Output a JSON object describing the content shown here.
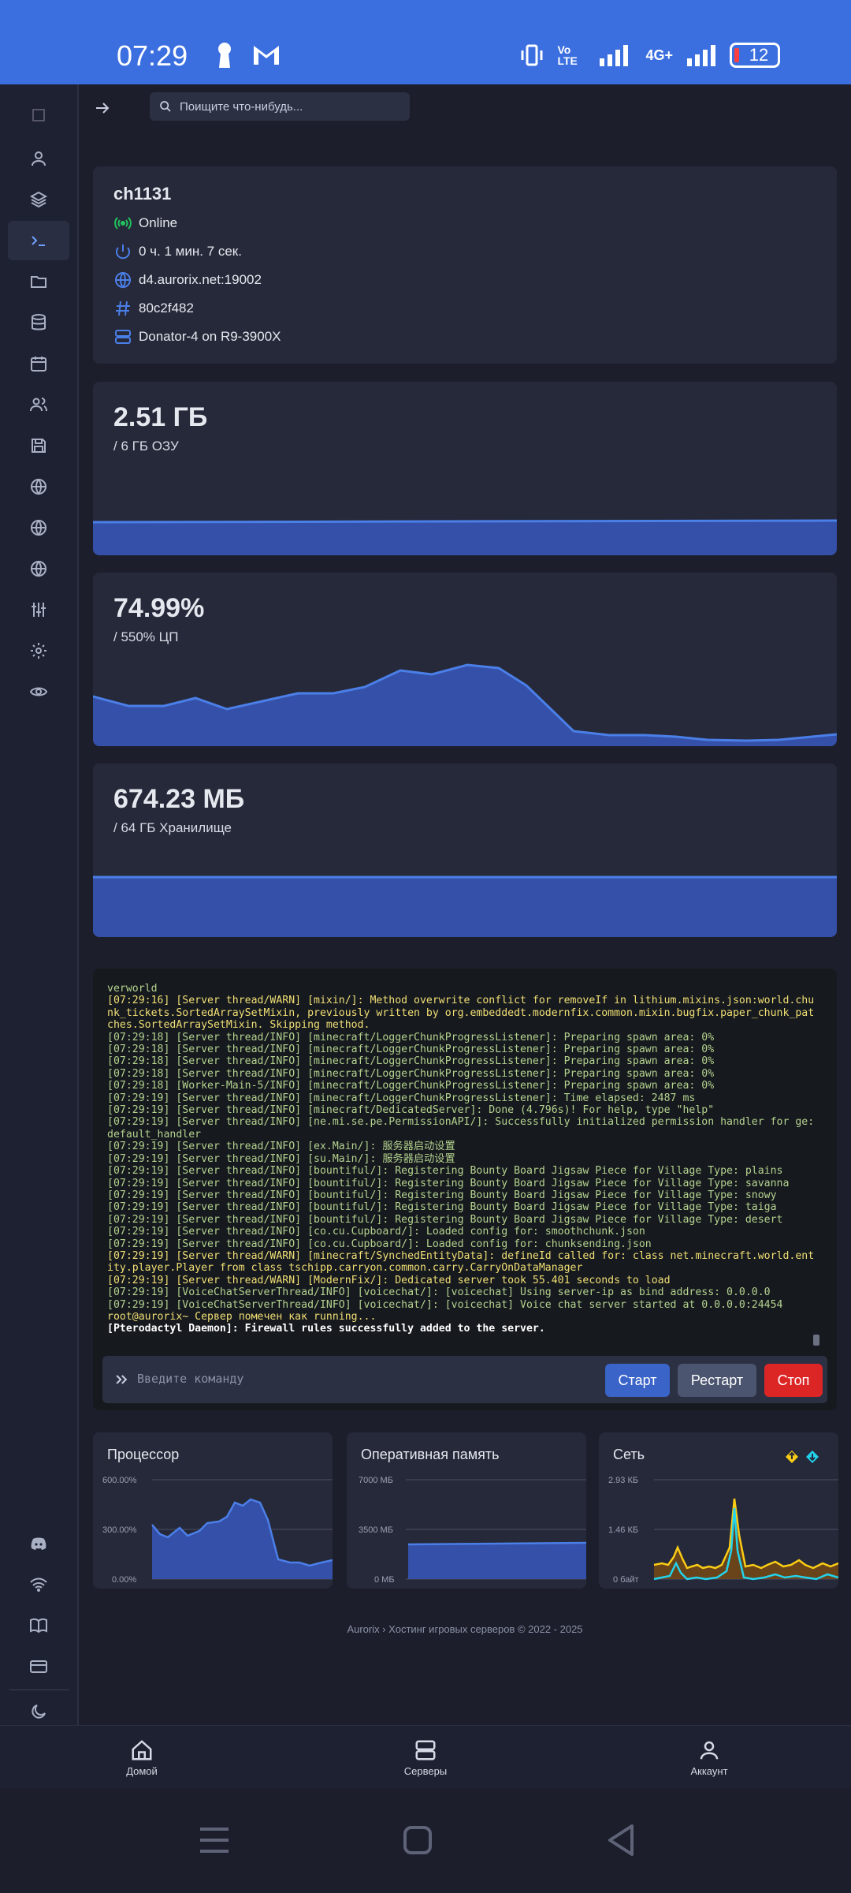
{
  "status_bar": {
    "time": "07:29",
    "battery": "12",
    "network": "4G+",
    "volte": "Vo LTE"
  },
  "search": {
    "placeholder": "Поищите что-нибудь..."
  },
  "server": {
    "name": "ch1131",
    "status": "Online",
    "uptime": "0 ч. 1 мин. 7 сек.",
    "address": "d4.aurorix.net:19002",
    "id": "80c2f482",
    "node": "Donator-4 on R9-3900X"
  },
  "stats": {
    "memory": {
      "value": "2.51 ГБ",
      "limit": "/ 6 ГБ ОЗУ",
      "fill_fraction": 0.42
    },
    "cpu": {
      "value": "74.99%",
      "limit": "/ 550% ЦП"
    },
    "disk": {
      "value": "674.23 МБ",
      "limit": "/ 64 ГБ Хранилище",
      "fill_fraction": 0.01
    }
  },
  "console": {
    "lines": [
      {
        "t": "verworld",
        "c": "l-info"
      },
      {
        "t": "[07:29:16] [Server thread/WARN] [mixin/]: Method overwrite conflict for removeIf in lithium.mixins.json:world.chunk_tickets.SortedArraySetMixin, previously written by org.embeddedt.modernfix.common.mixin.bugfix.paper_chunk_patches.SortedArraySetMixin. Skipping method.",
        "c": "l-warn"
      },
      {
        "t": "[07:29:18] [Server thread/INFO] [minecraft/LoggerChunkProgressListener]: Preparing spawn area: 0%",
        "c": "l-info"
      },
      {
        "t": "[07:29:18] [Server thread/INFO] [minecraft/LoggerChunkProgressListener]: Preparing spawn area: 0%",
        "c": "l-info"
      },
      {
        "t": "[07:29:18] [Server thread/INFO] [minecraft/LoggerChunkProgressListener]: Preparing spawn area: 0%",
        "c": "l-info"
      },
      {
        "t": "[07:29:18] [Server thread/INFO] [minecraft/LoggerChunkProgressListener]: Preparing spawn area: 0%",
        "c": "l-info"
      },
      {
        "t": "[07:29:18] [Worker-Main-5/INFO] [minecraft/LoggerChunkProgressListener]: Preparing spawn area: 0%",
        "c": "l-info"
      },
      {
        "t": "[07:29:19] [Server thread/INFO] [minecraft/LoggerChunkProgressListener]: Time elapsed: 2487 ms",
        "c": "l-info"
      },
      {
        "t": "[07:29:19] [Server thread/INFO] [minecraft/DedicatedServer]: Done (4.796s)! For help, type \"help\"",
        "c": "l-info"
      },
      {
        "t": "[07:29:19] [Server thread/INFO] [ne.mi.se.pe.PermissionAPI/]: Successfully initialized permission handler for ge:default_handler",
        "c": "l-info"
      },
      {
        "t": "[07:29:19] [Server thread/INFO] [ex.Main/]: 服务器启动设置",
        "c": "l-info"
      },
      {
        "t": "[07:29:19] [Server thread/INFO] [su.Main/]: 服务器启动设置",
        "c": "l-info"
      },
      {
        "t": "[07:29:19] [Server thread/INFO] [bountiful/]: Registering Bounty Board Jigsaw Piece for Village Type: plains",
        "c": "l-info"
      },
      {
        "t": "[07:29:19] [Server thread/INFO] [bountiful/]: Registering Bounty Board Jigsaw Piece for Village Type: savanna",
        "c": "l-info"
      },
      {
        "t": "[07:29:19] [Server thread/INFO] [bountiful/]: Registering Bounty Board Jigsaw Piece for Village Type: snowy",
        "c": "l-info"
      },
      {
        "t": "[07:29:19] [Server thread/INFO] [bountiful/]: Registering Bounty Board Jigsaw Piece for Village Type: taiga",
        "c": "l-info"
      },
      {
        "t": "[07:29:19] [Server thread/INFO] [bountiful/]: Registering Bounty Board Jigsaw Piece for Village Type: desert",
        "c": "l-info"
      },
      {
        "t": "[07:29:19] [Server thread/INFO] [co.cu.Cupboard/]: Loaded config for: smoothchunk.json",
        "c": "l-info"
      },
      {
        "t": "[07:29:19] [Server thread/INFO] [co.cu.Cupboard/]: Loaded config for: chunksending.json",
        "c": "l-info"
      },
      {
        "t": "[07:29:19] [Server thread/WARN] [minecraft/SynchedEntityData]: defineId called for: class net.minecraft.world.entity.player.Player from class tschipp.carryon.common.carry.CarryOnDataManager",
        "c": "l-warn"
      },
      {
        "t": "[07:29:19] [Server thread/WARN] [ModernFix/]: Dedicated server took 55.401 seconds to load",
        "c": "l-warn"
      },
      {
        "t": "[07:29:19] [VoiceChatServerThread/INFO] [voicechat/]: [voicechat] Using server-ip as bind address: 0.0.0.0",
        "c": "l-info"
      },
      {
        "t": "[07:29:19] [VoiceChatServerThread/INFO] [voicechat/]: [voicechat] Voice chat server started at 0.0.0.0:24454",
        "c": "l-info"
      },
      {
        "t": "root@aurorix~ Сервер помечен как running...",
        "c": "l-warn"
      },
      {
        "t": "[Pterodactyl Daemon]: Firewall rules successfully added to the server.",
        "c": "l-white"
      }
    ],
    "input_placeholder": "Введите команду",
    "start_label": "Старт",
    "restart_label": "Рестарт",
    "stop_label": "Стоп"
  },
  "mini_charts": {
    "cpu": {
      "title": "Процессор",
      "ticks": [
        "600.00%",
        "300.00%",
        "0.00%"
      ]
    },
    "ram": {
      "title": "Оперативная память",
      "ticks": [
        "7000 МБ",
        "3500 МБ",
        "0 МБ"
      ]
    },
    "net": {
      "title": "Сеть",
      "ticks": [
        "2.93 КБ",
        "1.46 КБ",
        "0 байт"
      ]
    }
  },
  "footer": {
    "text": "Aurorix › Хостинг игровых серверов © 2022 - 2025"
  },
  "bottom_nav": {
    "home": "Домой",
    "servers": "Серверы",
    "account": "Аккаунт"
  },
  "colors": {
    "accent": "#3b6fe0",
    "online": "#22c55e",
    "stop": "#dc2626",
    "restart": "#4b5570"
  }
}
